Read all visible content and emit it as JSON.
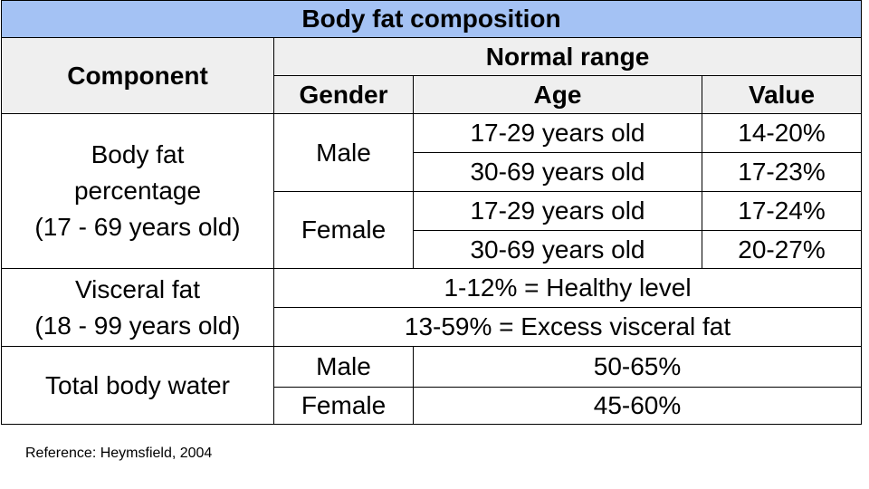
{
  "table": {
    "title": "Body fat composition",
    "header": {
      "component": "Component",
      "normal_range": "Normal range",
      "gender": "Gender",
      "age": "Age",
      "value": "Value"
    },
    "body_fat": {
      "label_lines": [
        "Body fat",
        "percentage",
        "(17 - 69 years old)"
      ],
      "male": "Male",
      "female": "Female",
      "rows": [
        {
          "age": "17-29 years old",
          "value": "14-20%"
        },
        {
          "age": "30-69 years old",
          "value": "17-23%"
        },
        {
          "age": "17-29 years old",
          "value": "17-24%"
        },
        {
          "age": "30-69 years old",
          "value": "20-27%"
        }
      ]
    },
    "visceral_fat": {
      "label_lines": [
        "Visceral fat",
        "(18 - 99 years old)"
      ],
      "healthy": "1-12% = Healthy level",
      "excess": "13-59% = Excess visceral fat"
    },
    "total_body_water": {
      "label": "Total body water",
      "male": "Male",
      "male_value": "50-65%",
      "female": "Female",
      "female_value": "45-60%"
    }
  },
  "reference": "Reference: Heymsfield, 2004",
  "colors": {
    "title_background": "#a4c2f4",
    "header_background": "#efefef",
    "border": "#000000"
  }
}
